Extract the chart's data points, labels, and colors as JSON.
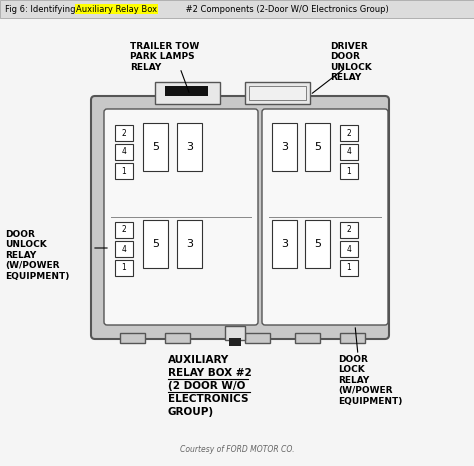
{
  "bg_color": "#f5f5f5",
  "header_bg": "#dcdcdc",
  "outer_box_color": "#c8c8c8",
  "inner_bg": "#f0f0f0",
  "white": "#ffffff",
  "dark": "#222222",
  "mid_gray": "#888888",
  "line_color": "#333333",
  "labels": {
    "trailer_tow": "TRAILER TOW\nPARK LAMPS\nRELAY",
    "driver_door": "DRIVER\nDOOR\nUNLOCK\nRELAY",
    "door_unlock": "DOOR\nUNLOCK\nRELAY\n(W/POWER\nEQUIPMENT)",
    "auxiliary_line1": "AUXILIARY",
    "auxiliary_line2": "RELAY BOX #2",
    "auxiliary_line3": "(2 DOOR W/O",
    "auxiliary_line4": "ELECTRONICS",
    "auxiliary_line5": "GROUP)",
    "door_lock": "DOOR\nLOCK\nRELAY\n(W/POWER\nEQUIPMENT)",
    "courtesy": "Courtesy of FORD MOTOR CO."
  },
  "left_sections": [
    {
      "small_nums": [
        2,
        4,
        1
      ],
      "large_labels": [
        5,
        3
      ]
    },
    {
      "small_nums": [
        2,
        4,
        1
      ],
      "large_labels": [
        5,
        3
      ]
    }
  ],
  "right_sections": [
    {
      "large_labels": [
        3,
        5
      ],
      "small_nums": [
        2,
        4,
        1
      ]
    },
    {
      "large_labels": [
        3,
        5
      ],
      "small_nums": [
        2,
        4,
        1
      ]
    }
  ]
}
